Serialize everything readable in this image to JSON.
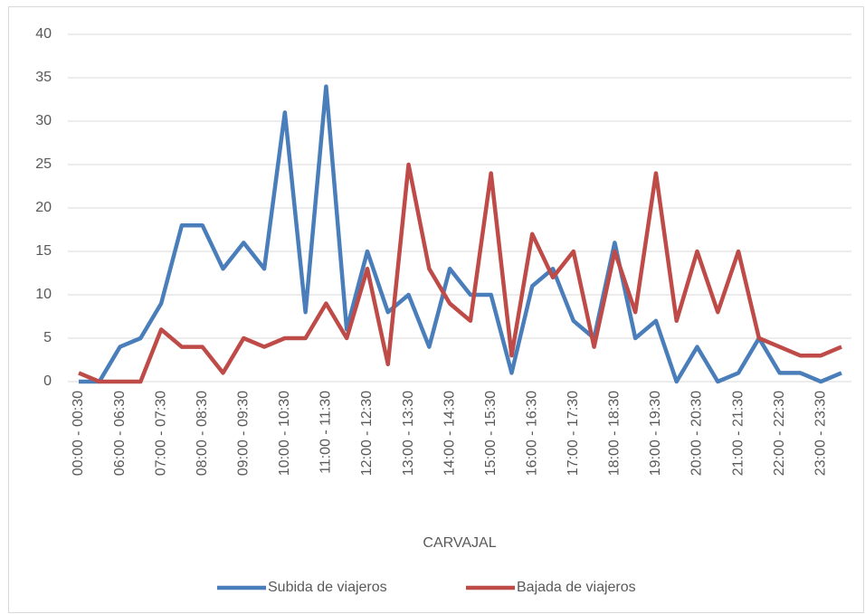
{
  "chart_data": {
    "type": "line",
    "x_label": "CARVAJAL",
    "categories": [
      "00:00 - 00:30",
      null,
      "06:00 - 06:30",
      null,
      "07:00 - 07:30",
      null,
      "08:00 - 08:30",
      null,
      "09:00 - 09:30",
      null,
      "10:00 - 10:30",
      null,
      "11:00 - 11:30",
      null,
      "12:00 - 12:30",
      null,
      "13:00 - 13:30",
      null,
      "14:00 - 14:30",
      null,
      "15:00 - 15:30",
      null,
      "16:00 - 16:30",
      null,
      "17:00 - 17:30",
      null,
      "18:00 - 18:30",
      null,
      "19:00 - 19:30",
      null,
      "20:00 - 20:30",
      null,
      "21:00 - 21:30",
      null,
      "22:00 - 22:30",
      null,
      "23:00 - 23:30",
      null
    ],
    "series": [
      {
        "name": "Subida de viajeros",
        "color": "#4a7ebb",
        "values": [
          0,
          0,
          4,
          5,
          9,
          18,
          18,
          13,
          16,
          13,
          31,
          8,
          34,
          6,
          15,
          8,
          10,
          4,
          13,
          10,
          10,
          1,
          11,
          13,
          7,
          5,
          16,
          5,
          7,
          0,
          4,
          0,
          1,
          5,
          1,
          1,
          0,
          1
        ]
      },
      {
        "name": "Bajada de viajeros",
        "color": "#be4b48",
        "values": [
          1,
          0,
          0,
          0,
          6,
          4,
          4,
          1,
          5,
          4,
          5,
          5,
          9,
          5,
          13,
          2,
          25,
          13,
          9,
          7,
          24,
          3,
          17,
          12,
          15,
          4,
          15,
          8,
          24,
          7,
          15,
          8,
          15,
          5,
          4,
          3,
          3,
          4
        ]
      }
    ],
    "ylim": [
      0,
      40
    ],
    "yticks": [
      0,
      5,
      10,
      15,
      20,
      25,
      30,
      35,
      40
    ],
    "grid": true,
    "legend": "bottom"
  }
}
